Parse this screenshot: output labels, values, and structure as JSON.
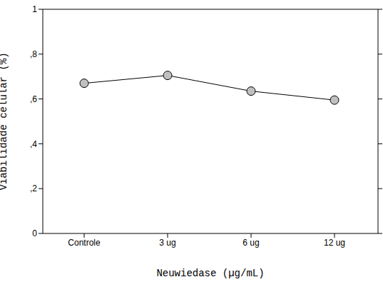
{
  "chart_data": {
    "type": "line",
    "categories": [
      "Controle",
      "3 ug",
      "6 ug",
      "12 ug"
    ],
    "values": [
      0.67,
      0.705,
      0.635,
      0.595
    ],
    "x_label": "Neuwiedase (µg/mL)",
    "y_label": "Viabilidade celular (%)",
    "ylim": [
      0,
      1
    ],
    "yticks": [
      0,
      {
        "value": 0.2,
        "label": ",2"
      },
      {
        "value": 0.4,
        "label": ",4"
      },
      {
        "value": 0.6,
        "label": ",6"
      },
      {
        "value": 0.8,
        "label": ",8"
      },
      1
    ],
    "color": "#000000",
    "marker": "circle",
    "grid": false
  }
}
